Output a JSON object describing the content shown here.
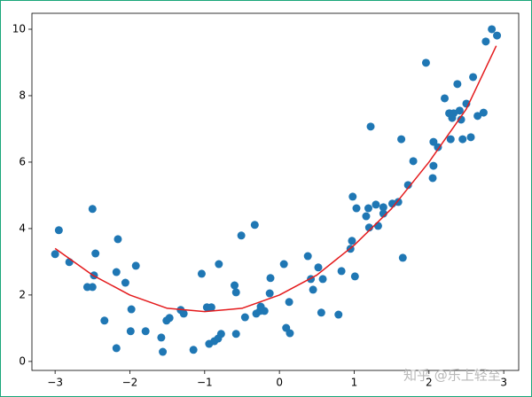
{
  "chart_data": {
    "type": "scatter",
    "watermark": "知乎 @乐上轻至",
    "xlim": [
      -3.31,
      3.2
    ],
    "ylim": [
      -0.27,
      10.48
    ],
    "xticks": [
      {
        "value": -3,
        "label": "−3"
      },
      {
        "value": -2,
        "label": "−2"
      },
      {
        "value": -1,
        "label": "−1"
      },
      0,
      1,
      2,
      3
    ],
    "yticks": [
      0,
      2,
      4,
      6,
      8,
      10
    ],
    "series": [
      {
        "type": "scatter",
        "color": "#1f77b4",
        "x": [
          -3.0,
          -2.95,
          -2.81,
          -2.5,
          -2.46,
          -2.57,
          -2.5,
          -2.48,
          -2.34,
          -2.16,
          -2.18,
          -2.06,
          -2.18,
          -1.98,
          -1.92,
          -1.99,
          -1.79,
          -1.58,
          -1.56,
          -1.51,
          -1.47,
          -1.32,
          -1.28,
          -1.15,
          -1.04,
          -0.97,
          -0.91,
          -0.94,
          -0.87,
          -0.82,
          -0.78,
          -0.81,
          -0.6,
          -0.58,
          -0.58,
          -0.51,
          -0.46,
          -0.33,
          -0.31,
          -0.26,
          -0.2,
          -0.25,
          -0.13,
          -0.12,
          0.06,
          0.09,
          0.14,
          0.13,
          0.38,
          0.42,
          0.45,
          0.52,
          0.58,
          0.56,
          0.79,
          0.83,
          0.95,
          0.97,
          0.98,
          1.01,
          1.03,
          1.16,
          1.2,
          1.19,
          1.22,
          1.29,
          1.32,
          1.39,
          1.39,
          1.51,
          1.59,
          1.63,
          1.65,
          1.72,
          1.79,
          1.96,
          2.05,
          2.06,
          2.06,
          2.12,
          2.21,
          2.27,
          2.31,
          2.33,
          2.29,
          2.38,
          2.41,
          2.43,
          2.45,
          2.5,
          2.56,
          2.59,
          2.65,
          2.73,
          2.76,
          2.84,
          2.91
        ],
        "values": [
          3.23,
          3.95,
          2.99,
          4.59,
          3.25,
          2.24,
          2.24,
          2.59,
          1.23,
          3.68,
          2.69,
          2.37,
          0.4,
          1.57,
          2.88,
          0.91,
          0.91,
          0.72,
          0.29,
          1.23,
          1.31,
          1.55,
          1.44,
          0.35,
          2.64,
          1.63,
          1.63,
          0.53,
          0.61,
          0.69,
          0.83,
          2.93,
          2.29,
          2.08,
          0.83,
          3.79,
          1.33,
          4.11,
          1.44,
          1.52,
          1.52,
          1.65,
          2.05,
          2.51,
          2.93,
          1.01,
          0.85,
          1.79,
          3.17,
          2.48,
          2.16,
          2.83,
          2.48,
          1.47,
          1.41,
          2.72,
          3.39,
          3.63,
          4.96,
          2.56,
          4.61,
          4.37,
          4.03,
          4.61,
          7.07,
          4.72,
          4.08,
          4.45,
          4.64,
          4.75,
          4.8,
          6.69,
          3.12,
          5.31,
          6.03,
          8.99,
          5.52,
          5.89,
          6.61,
          6.45,
          7.92,
          7.47,
          7.33,
          7.47,
          6.69,
          8.35,
          7.55,
          7.28,
          6.69,
          7.76,
          6.75,
          8.56,
          7.39,
          7.49,
          9.63,
          10.0,
          9.81
        ]
      },
      {
        "type": "line",
        "color": "#e41a1c",
        "x": [
          -3,
          -2.5,
          -2,
          -1.5,
          -1,
          -0.5,
          0,
          0.5,
          1,
          1.5,
          2,
          2.5,
          2.9
        ],
        "values": [
          3.4,
          2.6,
          2.0,
          1.6,
          1.5,
          1.6,
          2.0,
          2.6,
          3.5,
          4.6,
          6.0,
          7.6,
          9.5
        ]
      }
    ]
  }
}
